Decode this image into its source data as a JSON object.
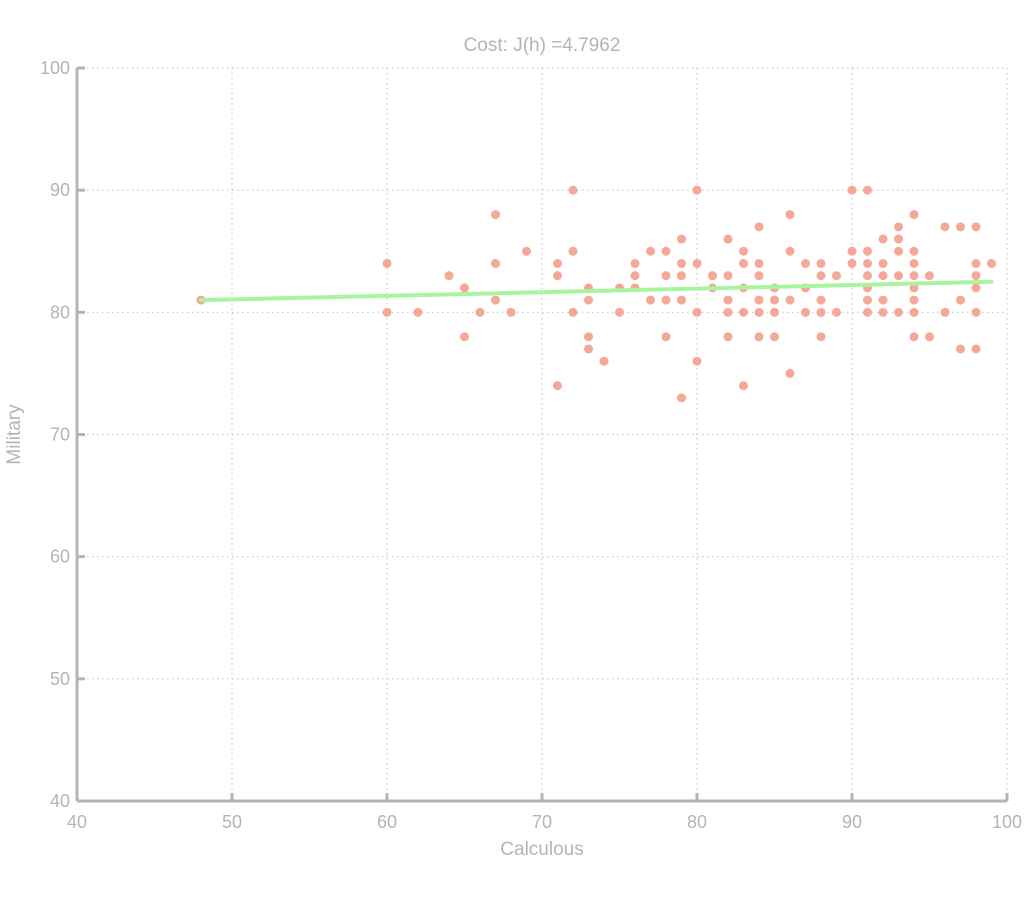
{
  "chart_data": {
    "type": "scatter",
    "title": "Cost: J(h) =4.7962",
    "xlabel": "Calculous",
    "ylabel": "Military",
    "xlim": [
      40,
      100
    ],
    "ylim": [
      40,
      100
    ],
    "xticks": [
      "40",
      "50",
      "60",
      "70",
      "80",
      "90",
      "100"
    ],
    "yticks": [
      "40",
      "50",
      "60",
      "70",
      "80",
      "90",
      "100"
    ],
    "grid": true,
    "colors": {
      "points": "#f4a898",
      "fit_line": "#a8f5a0",
      "axes": "#b4b4b4",
      "grid": "#c8c8c8",
      "text": "#b4b4b4"
    },
    "series": [
      {
        "type": "scatter",
        "points": [
          [
            48,
            81
          ],
          [
            60,
            84
          ],
          [
            60,
            80
          ],
          [
            62,
            80
          ],
          [
            64,
            83
          ],
          [
            65,
            82
          ],
          [
            65,
            78
          ],
          [
            66,
            80
          ],
          [
            67,
            88
          ],
          [
            67,
            84
          ],
          [
            67,
            81
          ],
          [
            68,
            80
          ],
          [
            69,
            85
          ],
          [
            71,
            84
          ],
          [
            71,
            83
          ],
          [
            71,
            74
          ],
          [
            72,
            90
          ],
          [
            72,
            85
          ],
          [
            72,
            80
          ],
          [
            73,
            82
          ],
          [
            73,
            81
          ],
          [
            73,
            78
          ],
          [
            73,
            77
          ],
          [
            74,
            76
          ],
          [
            75,
            82
          ],
          [
            75,
            80
          ],
          [
            76,
            84
          ],
          [
            76,
            83
          ],
          [
            76,
            82
          ],
          [
            77,
            85
          ],
          [
            77,
            81
          ],
          [
            78,
            85
          ],
          [
            78,
            83
          ],
          [
            78,
            81
          ],
          [
            78,
            78
          ],
          [
            79,
            86
          ],
          [
            79,
            84
          ],
          [
            79,
            83
          ],
          [
            79,
            81
          ],
          [
            79,
            73
          ],
          [
            80,
            90
          ],
          [
            80,
            84
          ],
          [
            80,
            80
          ],
          [
            80,
            76
          ],
          [
            81,
            83
          ],
          [
            81,
            82
          ],
          [
            82,
            86
          ],
          [
            82,
            83
          ],
          [
            82,
            81
          ],
          [
            82,
            80
          ],
          [
            82,
            78
          ],
          [
            83,
            85
          ],
          [
            83,
            84
          ],
          [
            83,
            82
          ],
          [
            83,
            80
          ],
          [
            83,
            74
          ],
          [
            84,
            87
          ],
          [
            84,
            84
          ],
          [
            84,
            83
          ],
          [
            84,
            81
          ],
          [
            84,
            80
          ],
          [
            84,
            78
          ],
          [
            85,
            82
          ],
          [
            85,
            81
          ],
          [
            85,
            80
          ],
          [
            85,
            78
          ],
          [
            86,
            88
          ],
          [
            86,
            85
          ],
          [
            86,
            81
          ],
          [
            86,
            75
          ],
          [
            87,
            84
          ],
          [
            87,
            82
          ],
          [
            87,
            80
          ],
          [
            88,
            84
          ],
          [
            88,
            83
          ],
          [
            88,
            81
          ],
          [
            88,
            80
          ],
          [
            88,
            78
          ],
          [
            89,
            83
          ],
          [
            89,
            80
          ],
          [
            90,
            90
          ],
          [
            90,
            85
          ],
          [
            90,
            84
          ],
          [
            91,
            90
          ],
          [
            91,
            85
          ],
          [
            91,
            84
          ],
          [
            91,
            83
          ],
          [
            91,
            82
          ],
          [
            91,
            81
          ],
          [
            91,
            80
          ],
          [
            92,
            86
          ],
          [
            92,
            84
          ],
          [
            92,
            83
          ],
          [
            92,
            81
          ],
          [
            92,
            80
          ],
          [
            93,
            87
          ],
          [
            93,
            86
          ],
          [
            93,
            85
          ],
          [
            93,
            83
          ],
          [
            93,
            80
          ],
          [
            94,
            88
          ],
          [
            94,
            85
          ],
          [
            94,
            84
          ],
          [
            94,
            83
          ],
          [
            94,
            82
          ],
          [
            94,
            81
          ],
          [
            94,
            80
          ],
          [
            94,
            78
          ],
          [
            95,
            83
          ],
          [
            95,
            78
          ],
          [
            96,
            87
          ],
          [
            96,
            80
          ],
          [
            97,
            87
          ],
          [
            97,
            81
          ],
          [
            97,
            77
          ],
          [
            98,
            87
          ],
          [
            98,
            84
          ],
          [
            98,
            83
          ],
          [
            98,
            82
          ],
          [
            98,
            80
          ],
          [
            98,
            77
          ],
          [
            99,
            84
          ]
        ]
      },
      {
        "type": "line",
        "x": [
          48,
          99
        ],
        "y": [
          81.0,
          82.5
        ]
      }
    ]
  }
}
